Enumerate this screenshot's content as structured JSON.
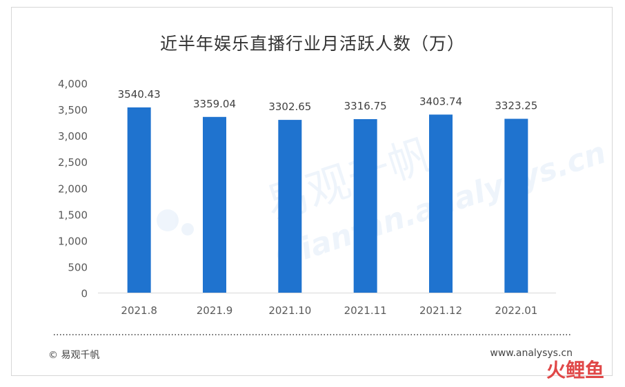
{
  "chart_data": {
    "type": "bar",
    "title": "近半年娱乐直播行业月活跃人数（万）",
    "categories": [
      "2021.8",
      "2021.9",
      "2021.10",
      "2021.11",
      "2021.12",
      "2022.01"
    ],
    "values": [
      3540.43,
      3359.04,
      3302.65,
      3316.75,
      3403.74,
      3323.25
    ],
    "data_labels": [
      "3540.43",
      "3359.04",
      "3302.65",
      "3316.75",
      "3403.74",
      "3323.25"
    ],
    "ylim": [
      0,
      4000
    ],
    "yticks": [
      0,
      500,
      1000,
      1500,
      2000,
      2500,
      3000,
      3500,
      4000
    ],
    "ytick_labels": [
      "0",
      "500",
      "1,000",
      "1,500",
      "2,000",
      "2,500",
      "3,000",
      "3,500",
      "4,000"
    ],
    "grid": false,
    "bar_color": "#1f73cf",
    "xlabel": "",
    "ylabel": ""
  },
  "footer": {
    "source": "© 易观千帆",
    "url": "www.analysys.cn"
  },
  "watermark": {
    "cn": "易观千帆",
    "en": "Qianfan.analysys.cn"
  },
  "brand_logo": "火鲤鱼",
  "colors": {
    "axis_text": "#595959",
    "label_text": "#404040",
    "divider": "#333333",
    "brand": "#e04848"
  }
}
